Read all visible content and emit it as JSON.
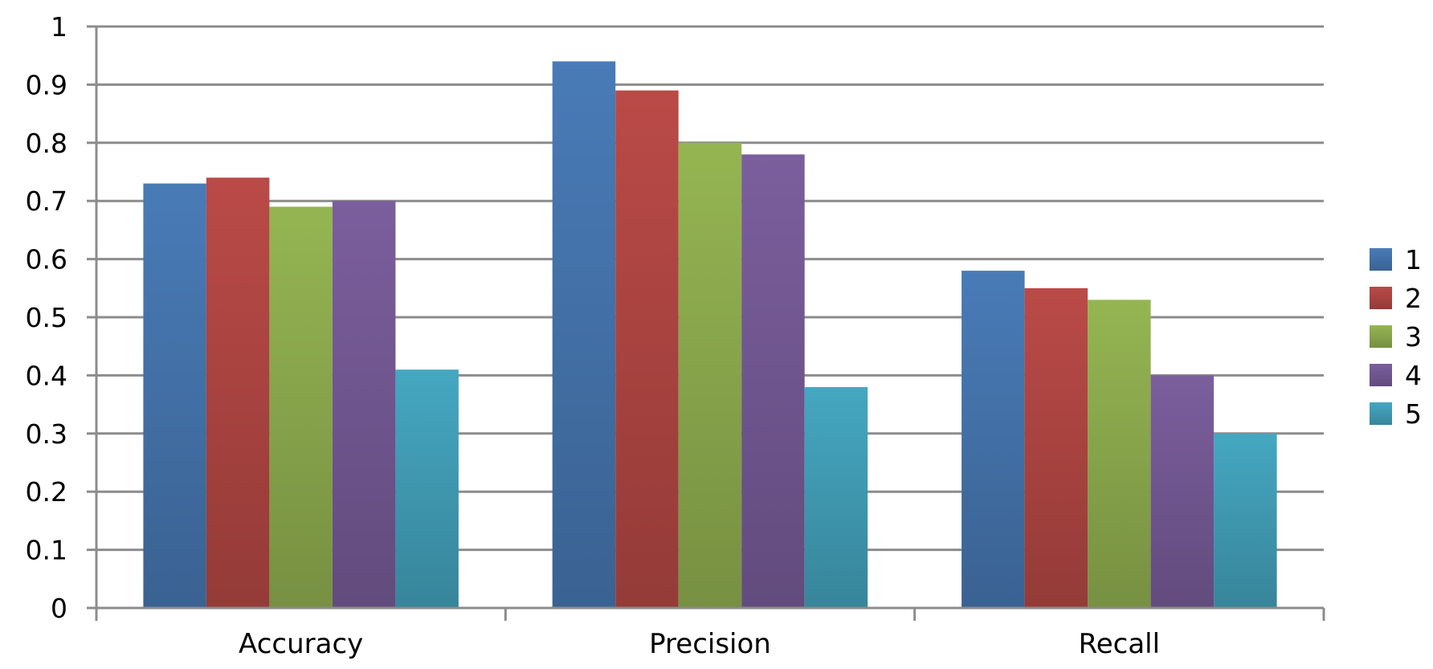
{
  "chart_data": {
    "type": "bar",
    "title": "",
    "xlabel": "",
    "ylabel": "",
    "categories": [
      "Accuracy",
      "Precision",
      "Recall"
    ],
    "series": [
      {
        "name": "1",
        "values": [
          0.73,
          0.94,
          0.58
        ],
        "color": "#4A7EBB"
      },
      {
        "name": "2",
        "values": [
          0.74,
          0.89,
          0.55
        ],
        "color": "#BE4B48"
      },
      {
        "name": "3",
        "values": [
          0.69,
          0.8,
          0.53
        ],
        "color": "#98B954"
      },
      {
        "name": "4",
        "values": [
          0.7,
          0.78,
          0.4
        ],
        "color": "#7D60A0"
      },
      {
        "name": "5",
        "values": [
          0.41,
          0.38,
          0.3
        ],
        "color": "#46AAC5"
      }
    ],
    "ylim": [
      0,
      1
    ],
    "yticks": [
      "0",
      "0.1",
      "0.2",
      "0.3",
      "0.4",
      "0.5",
      "0.6",
      "0.7",
      "0.8",
      "0.9",
      "1"
    ],
    "grid": true,
    "legend_position": "right"
  }
}
